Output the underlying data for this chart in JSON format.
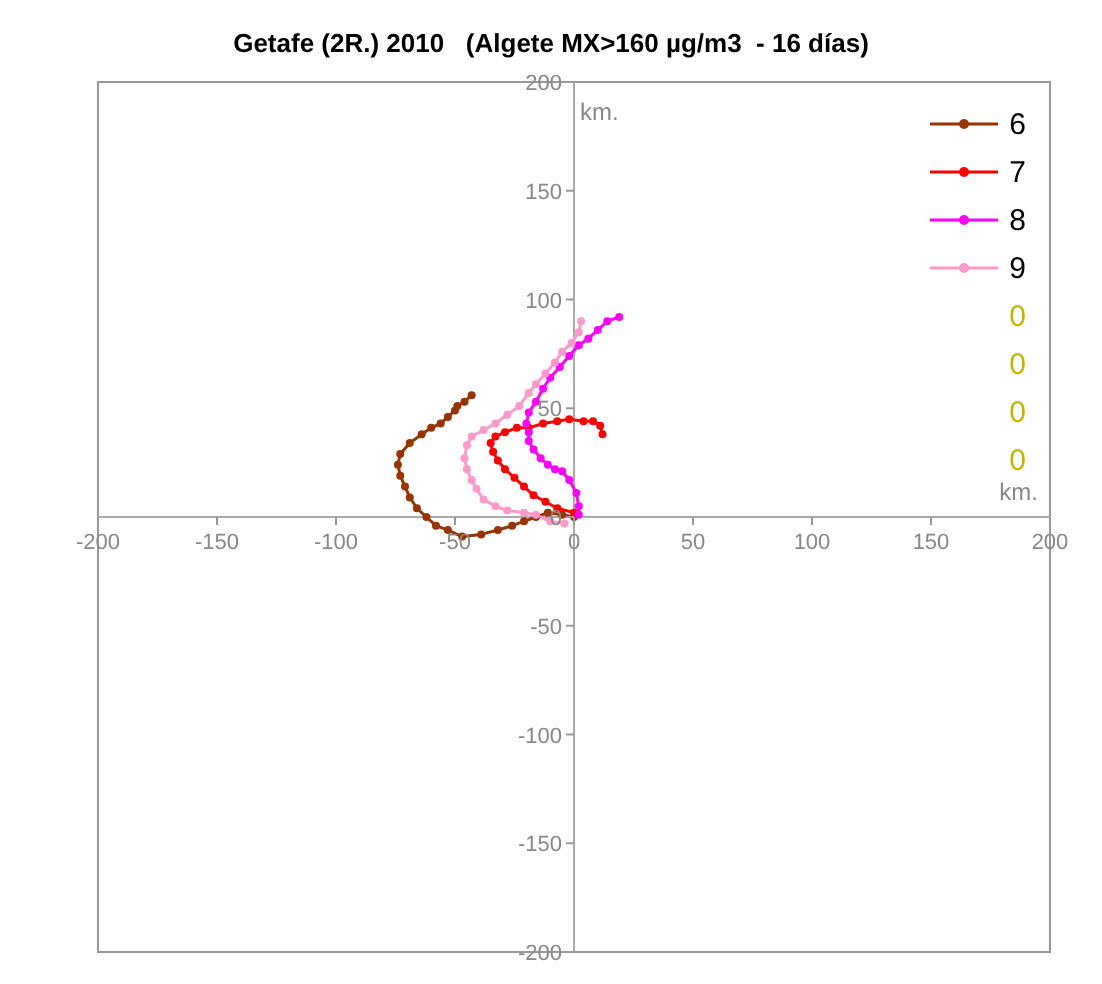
{
  "chart_data": {
    "type": "line",
    "title": "Getafe (2R.) 2010   (Algete MX>160 µg/m3  - 16 días)",
    "xlabel": "km.",
    "ylabel": "km.",
    "xlim": [
      -200,
      200
    ],
    "ylim": [
      -200,
      200
    ],
    "xticks": [
      -200,
      -150,
      -100,
      -50,
      0,
      50,
      100,
      150,
      200
    ],
    "yticks": [
      -200,
      -150,
      -100,
      -50,
      0,
      50,
      100,
      150,
      200
    ],
    "grid": false,
    "legend": "top right",
    "marker": "circle",
    "line_style": "solid",
    "series": [
      {
        "name": "6",
        "color": "#993300",
        "x": [
          0,
          -5,
          -11,
          -16,
          -21,
          -26,
          -32,
          -39,
          -47,
          -53,
          -58,
          -62,
          -66,
          -69,
          -71,
          -73,
          -74,
          -73,
          -69,
          -64,
          -60,
          -56,
          -53,
          -50,
          -49,
          -46,
          -43
        ],
        "values": [
          0,
          1,
          2,
          0,
          -2,
          -4,
          -6,
          -8,
          -9,
          -6,
          -4,
          0,
          4,
          9,
          14,
          19,
          24,
          29,
          34,
          38,
          41,
          43,
          46,
          49,
          51,
          53,
          56
        ]
      },
      {
        "name": "7",
        "color": "#ff0000",
        "x": [
          0,
          -7,
          -12,
          -17,
          -21,
          -25,
          -29,
          -32,
          -34,
          -35,
          -33,
          -29,
          -24,
          -19,
          -13,
          -7,
          -2,
          4,
          8,
          11,
          12
        ],
        "values": [
          2,
          4,
          7,
          10,
          14,
          18,
          22,
          26,
          30,
          34,
          37,
          39,
          41,
          41,
          43,
          44,
          45,
          44,
          44,
          42,
          38
        ]
      },
      {
        "name": "8",
        "color": "#ff00ff",
        "x": [
          2,
          2,
          1,
          -2,
          -5,
          -8,
          -11,
          -14,
          -17,
          -19,
          -19,
          -20,
          -19,
          -16,
          -13,
          -10,
          -6,
          -2,
          2,
          6,
          10,
          14,
          19
        ],
        "values": [
          1,
          5,
          11,
          17,
          21,
          22,
          24,
          27,
          31,
          35,
          39,
          43,
          48,
          53,
          59,
          64,
          69,
          74,
          79,
          82,
          86,
          90,
          92
        ]
      },
      {
        "name": "9",
        "color": "#ff99cc",
        "x": [
          -4,
          -10,
          -16,
          -21,
          -28,
          -33,
          -38,
          -41,
          -43,
          -45,
          -46,
          -45,
          -43,
          -38,
          -33,
          -28,
          -23,
          -19,
          -16,
          -12,
          -8,
          -5,
          -1,
          2,
          3
        ],
        "values": [
          -3,
          -2,
          1,
          2,
          3,
          5,
          8,
          13,
          17,
          22,
          27,
          33,
          37,
          40,
          43,
          47,
          51,
          57,
          61,
          66,
          71,
          76,
          80,
          85,
          90
        ]
      },
      {
        "name": "0",
        "color": "#c8b400"
      },
      {
        "name": "0",
        "color": "#c8b400"
      },
      {
        "name": "0",
        "color": "#c8b400"
      },
      {
        "name": "0",
        "color": "#c8b400"
      }
    ]
  }
}
